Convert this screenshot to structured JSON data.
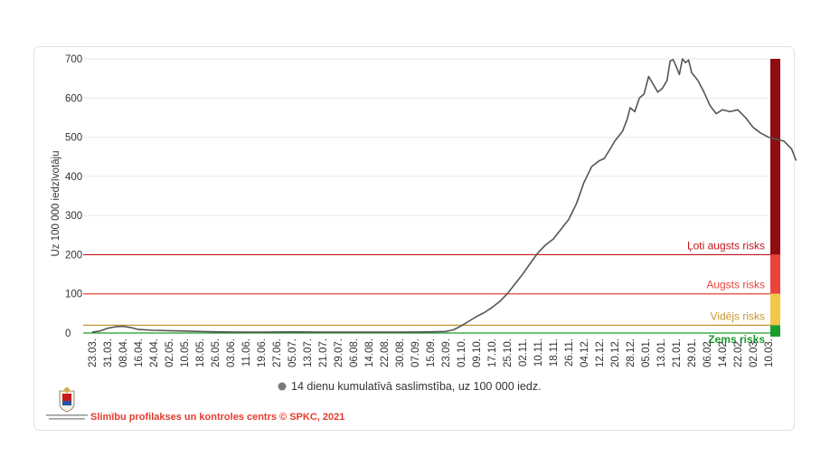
{
  "chart_data": {
    "type": "line",
    "ylabel": "Uz 100 000 iedzīvotāju",
    "ylim": [
      0,
      700
    ],
    "yticks": [
      0,
      100,
      200,
      300,
      400,
      500,
      600,
      700
    ],
    "grid": true,
    "categories": [
      "23.03.",
      "31.03.",
      "08.04.",
      "16.04.",
      "24.04.",
      "02.05.",
      "10.05.",
      "18.05.",
      "26.05.",
      "03.06.",
      "11.06.",
      "19.06.",
      "27.06.",
      "05.07.",
      "13.07.",
      "21.07.",
      "29.07.",
      "06.08.",
      "14.08.",
      "22.08.",
      "30.08.",
      "07.09.",
      "15.09.",
      "23.09.",
      "01.10.",
      "09.10.",
      "17.10.",
      "25.10.",
      "02.11.",
      "10.11.",
      "18.11.",
      "26.11.",
      "04.12.",
      "12.12.",
      "20.12.",
      "28.12.",
      "05.01.",
      "13.01.",
      "21.01.",
      "29.01.",
      "06.02.",
      "14.02.",
      "22.02.",
      "02.03.",
      "10.03."
    ],
    "series": [
      {
        "name": "14 dienu kumulatīvā saslimstība, uz 100 000 iedz.",
        "color": "#555555",
        "points": [
          [
            0,
            2
          ],
          [
            0.5,
            5
          ],
          [
            1,
            12
          ],
          [
            1.5,
            16
          ],
          [
            2,
            17
          ],
          [
            2.5,
            14
          ],
          [
            3,
            9
          ],
          [
            4,
            7
          ],
          [
            5,
            6
          ],
          [
            6,
            5
          ],
          [
            7,
            4
          ],
          [
            8,
            3
          ],
          [
            9,
            2.5
          ],
          [
            10,
            2
          ],
          [
            11,
            2
          ],
          [
            12,
            2.5
          ],
          [
            13,
            3
          ],
          [
            14,
            2.5
          ],
          [
            15,
            2
          ],
          [
            16,
            2
          ],
          [
            17,
            2
          ],
          [
            18,
            2
          ],
          [
            19,
            2
          ],
          [
            20,
            2
          ],
          [
            21,
            2.5
          ],
          [
            22,
            3
          ],
          [
            23,
            4
          ],
          [
            23.5,
            8
          ],
          [
            24,
            18
          ],
          [
            24.5,
            30
          ],
          [
            25,
            42
          ],
          [
            25.5,
            52
          ],
          [
            26,
            65
          ],
          [
            26.5,
            80
          ],
          [
            27,
            100
          ],
          [
            27.5,
            125
          ],
          [
            28,
            150
          ],
          [
            28.5,
            178
          ],
          [
            29,
            205
          ],
          [
            29.5,
            225
          ],
          [
            30,
            240
          ],
          [
            30.5,
            265
          ],
          [
            31,
            290
          ],
          [
            31.5,
            330
          ],
          [
            32,
            385
          ],
          [
            32.5,
            425
          ],
          [
            33,
            440
          ],
          [
            33.3,
            445
          ],
          [
            33.7,
            470
          ],
          [
            34,
            490
          ],
          [
            34.5,
            515
          ],
          [
            34.8,
            545
          ],
          [
            35,
            575
          ],
          [
            35.3,
            565
          ],
          [
            35.6,
            600
          ],
          [
            35.9,
            610
          ],
          [
            36.2,
            655
          ],
          [
            36.5,
            635
          ],
          [
            36.8,
            615
          ],
          [
            37.1,
            625
          ],
          [
            37.4,
            645
          ],
          [
            37.6,
            695
          ],
          [
            37.8,
            698
          ],
          [
            38,
            680
          ],
          [
            38.2,
            660
          ],
          [
            38.4,
            700
          ],
          [
            38.6,
            690
          ],
          [
            38.8,
            697
          ],
          [
            39,
            665
          ],
          [
            39.4,
            645
          ],
          [
            39.8,
            615
          ],
          [
            40.2,
            580
          ],
          [
            40.6,
            560
          ],
          [
            41,
            570
          ],
          [
            41.5,
            565
          ],
          [
            42,
            570
          ],
          [
            42.5,
            550
          ],
          [
            43,
            525
          ],
          [
            43.5,
            510
          ],
          [
            44,
            500
          ],
          [
            44.5,
            495
          ],
          [
            45,
            490
          ],
          [
            45.5,
            470
          ],
          [
            45.8,
            440
          ]
        ]
      }
    ],
    "risk_lines": [
      {
        "value": 200,
        "label": "Ļoti augsts risks",
        "color": "#c3141a"
      },
      {
        "value": 100,
        "label": "Augsts risks",
        "color": "#e9433a"
      },
      {
        "value": 20,
        "label": "Vidējs risks",
        "color": "#c8962e"
      },
      {
        "value": 0,
        "label": "Zems risks",
        "color": "#1c9c2b"
      }
    ],
    "risk_bands": [
      {
        "from": 200,
        "to": 700,
        "color": "#8f0c12"
      },
      {
        "from": 100,
        "to": 200,
        "color": "#e9433a"
      },
      {
        "from": 20,
        "to": 100,
        "color": "#f1c84a"
      },
      {
        "from": 0,
        "to": 20,
        "color": "#1c9c2b"
      }
    ],
    "legend_position": "bottom"
  },
  "footer": {
    "credit": "Slimību profilakses un kontroles centrs © SPKC, 2021"
  }
}
